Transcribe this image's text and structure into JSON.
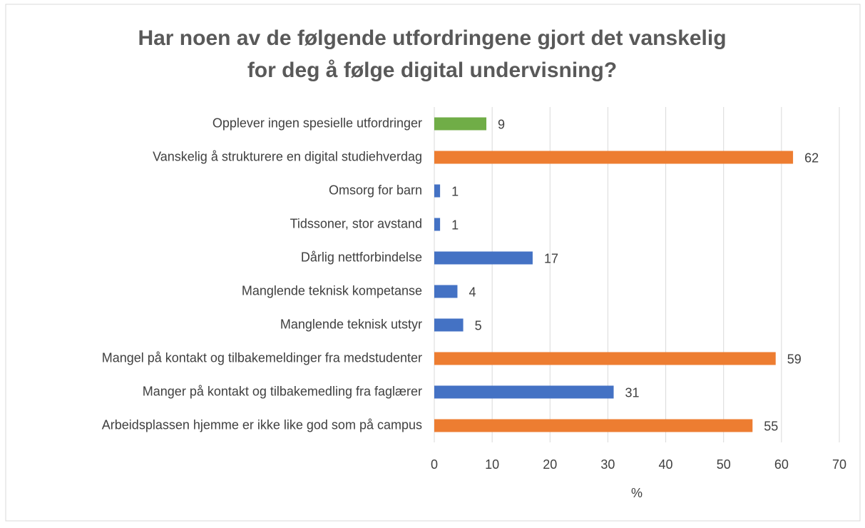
{
  "chart_data": {
    "type": "barh",
    "title": "Har noen av de følgende utfordringene gjort det vanskelig for deg å følge digital undervisning?",
    "categories": [
      "Opplever ingen spesielle utfordringer",
      "Vanskelig å strukturere en digital studiehverdag",
      "Omsorg for barn",
      "Tidssoner, stor avstand",
      "Dårlig nettforbindelse",
      "Manglende teknisk kompetanse",
      "Manglende teknisk utstyr",
      "Mangel på kontakt og tilbakemeldinger fra medstudenter",
      "Manger på kontakt og tilbakemedling fra faglærer",
      "Arbeidsplassen hjemme er ikke like god som på campus"
    ],
    "values": [
      9,
      62,
      1,
      1,
      17,
      4,
      5,
      59,
      31,
      55
    ],
    "colors": [
      "#70ad47",
      "#ed7d31",
      "#4472c4",
      "#4472c4",
      "#4472c4",
      "#4472c4",
      "#4472c4",
      "#ed7d31",
      "#4472c4",
      "#ed7d31"
    ],
    "xlim": [
      0,
      70
    ],
    "xticks": [
      0,
      10,
      20,
      30,
      40,
      50,
      60,
      70
    ],
    "xlabel": "%",
    "grid": true
  }
}
